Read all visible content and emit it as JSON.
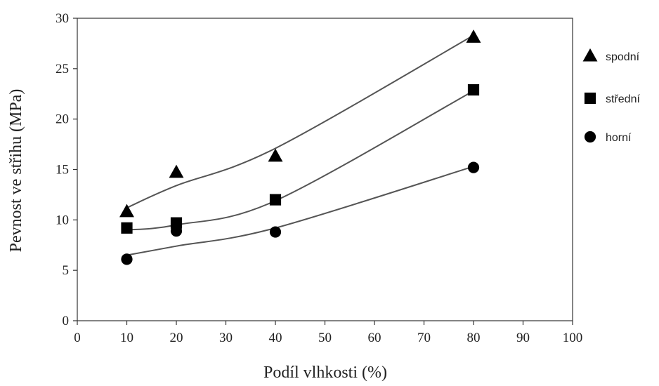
{
  "chart_data": {
    "type": "scatter",
    "xlabel": "Podíl vlhkosti (%)",
    "ylabel": "Pevnost ve střihu (MPa)",
    "xlim": [
      0,
      100
    ],
    "ylim": [
      0,
      30
    ],
    "xticks": [
      "0",
      "10",
      "20",
      "30",
      "40",
      "50",
      "60",
      "70",
      "80",
      "90",
      "100"
    ],
    "yticks": [
      "0",
      "5",
      "10",
      "15",
      "20",
      "25",
      "30"
    ],
    "x": [
      10,
      20,
      40,
      80
    ],
    "series": [
      {
        "name": "spodní",
        "marker": "triangle",
        "values": [
          10.8,
          14.7,
          16.3,
          28.1
        ],
        "trend": [
          11.2,
          13.4,
          17.1,
          28.3
        ]
      },
      {
        "name": "střední",
        "marker": "square",
        "values": [
          9.2,
          9.7,
          12.0,
          22.9
        ],
        "trend": [
          9.0,
          9.5,
          11.9,
          22.8
        ]
      },
      {
        "name": "horní",
        "marker": "circle",
        "values": [
          6.1,
          8.9,
          8.8,
          15.2
        ],
        "trend": [
          6.5,
          7.4,
          9.2,
          15.3
        ]
      }
    ],
    "grid": false,
    "legend": "right",
    "colors": {
      "marker": "#000000",
      "line": "#555555",
      "axis": "#333333"
    }
  }
}
